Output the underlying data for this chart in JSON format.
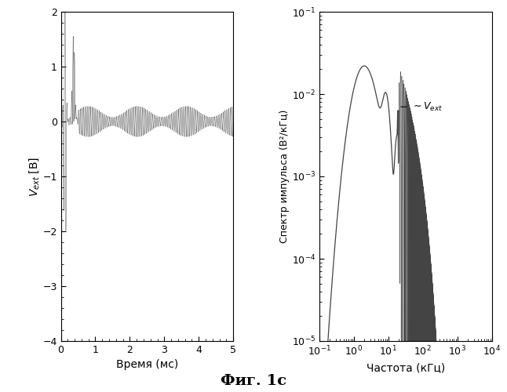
{
  "left_xlabel": "Время (мс)",
  "left_ylabel": "$V_{ext}$ [В]",
  "left_xlim": [
    0,
    5
  ],
  "left_ylim": [
    -4,
    2
  ],
  "left_yticks": [
    -4,
    -3,
    -2,
    -1,
    0,
    1,
    2
  ],
  "left_xticks": [
    0,
    1,
    2,
    3,
    4,
    5
  ],
  "right_xlabel": "Частота (кГц)",
  "right_ylabel": "Спектр импульса (В²/кГц)",
  "right_xlim": [
    0.1,
    10000
  ],
  "right_ylim": [
    1e-05,
    0.1
  ],
  "annotation_text": "~ $V_{ext}$",
  "figure_title": "Фиг. 1с",
  "line_color": "#444444",
  "background_color": "#ffffff"
}
